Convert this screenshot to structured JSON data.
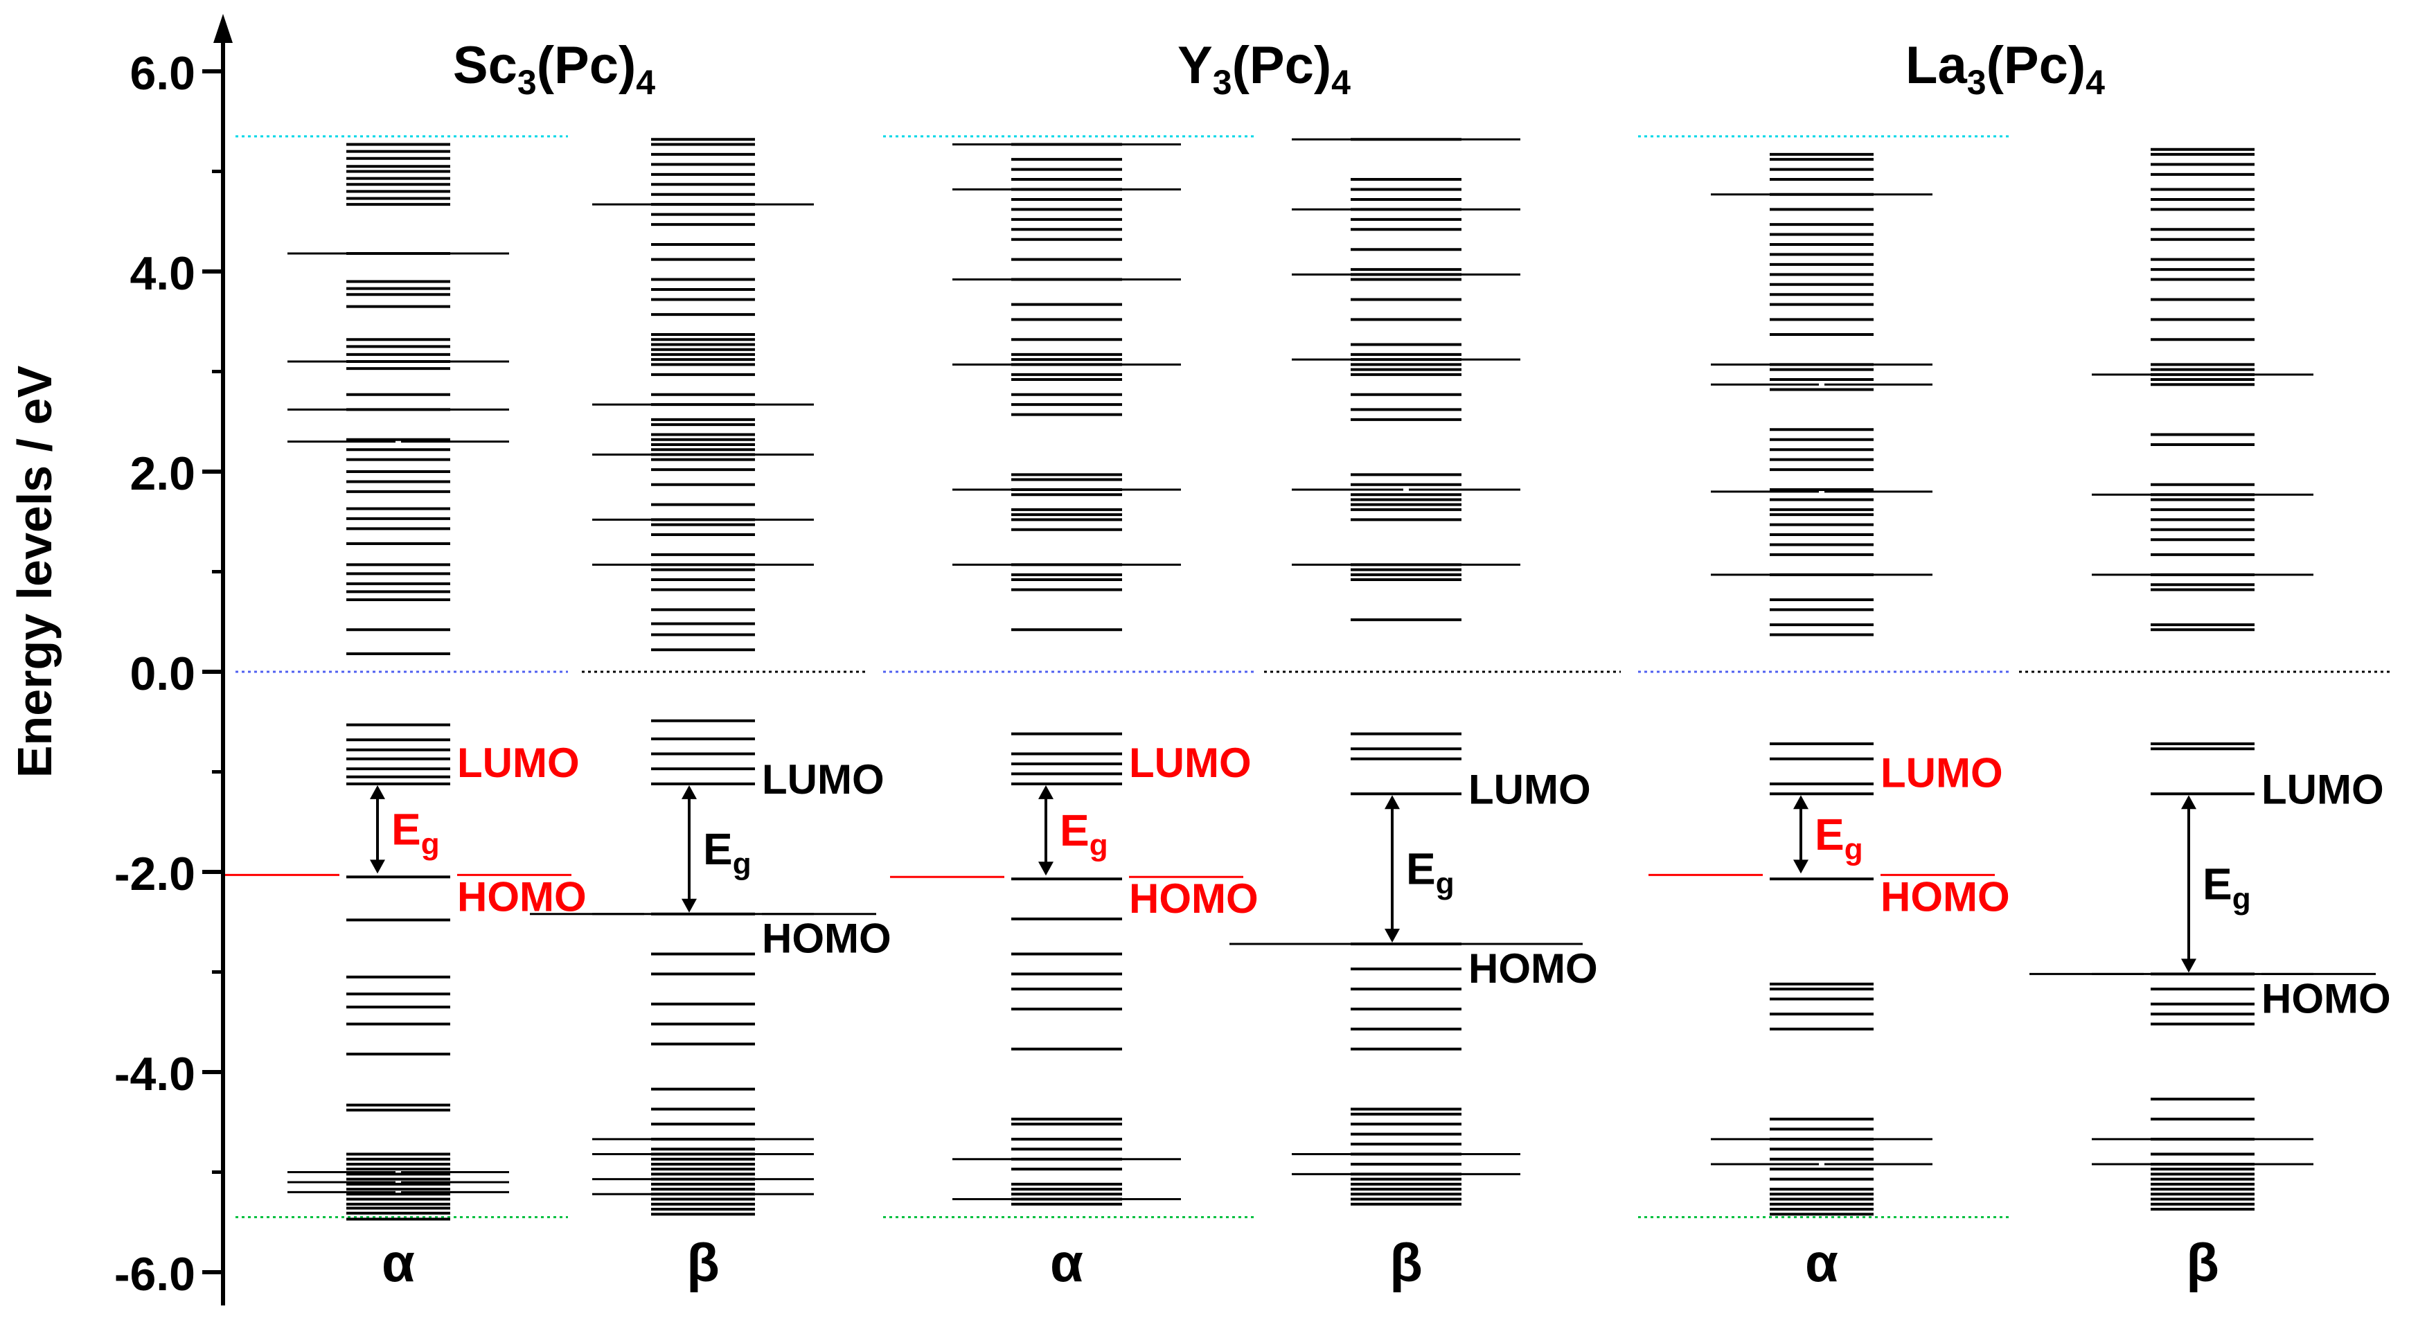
{
  "chart_data": {
    "type": "energy-level-diagram",
    "ylabel": "Energy levels / eV",
    "ylim": [
      -6.0,
      6.0
    ],
    "yticks": [
      "6.0",
      "4.0",
      "2.0",
      "0.0",
      "-2.0",
      "-4.0",
      "-6.0"
    ],
    "ytick_values": [
      6,
      4,
      2,
      0,
      -2,
      -4,
      -6
    ],
    "colors": {
      "level": "#000000",
      "alpha_annotation": "#ff0000",
      "beta_annotation": "#000000",
      "top_ref": "#00d8e8",
      "zero_ref_alpha": "#5060f0",
      "zero_ref_beta": "#000000",
      "bottom_ref": "#00c040"
    },
    "panels": [
      {
        "title_base": "Sc",
        "title_sub1": "3",
        "title_mid": "(Pc)",
        "title_sub2": "4",
        "columns": [
          {
            "spin": "α",
            "levels": [
              -5.47,
              -5.41,
              -5.36,
              -5.32,
              -5.27,
              -5.22,
              -5.17,
              -5.12,
              -5.07,
              -5.02,
              -4.97,
              -4.92,
              -4.87,
              -4.82,
              -4.38,
              -4.33,
              -3.82,
              -3.52,
              -3.35,
              -3.22,
              -3.05,
              -2.48,
              -2.05,
              -1.12,
              -1.05,
              -0.97,
              -0.87,
              -0.78,
              -0.68,
              -0.53,
              0.18,
              0.42,
              0.72,
              0.8,
              0.88,
              0.98,
              1.07,
              1.28,
              1.43,
              1.53,
              1.63,
              1.8,
              1.9,
              2.0,
              2.12,
              2.22,
              2.32,
              2.62,
              2.77,
              3.03,
              3.1,
              3.17,
              3.25,
              3.32,
              3.65,
              3.77,
              3.83,
              3.9,
              4.18,
              4.67,
              4.73,
              4.8,
              4.87,
              4.93,
              5.0,
              5.05,
              5.13,
              5.2,
              5.27
            ],
            "wide_levels": [
              {
                "e": -5.2,
                "side": "left"
              },
              {
                "e": -5.2,
                "side": "right"
              },
              {
                "e": -5.1,
                "side": "both"
              },
              {
                "e": -5.0,
                "side": "both"
              },
              {
                "e": 2.3,
                "side": "both"
              },
              {
                "e": 2.62,
                "side": "both"
              },
              {
                "e": 3.1,
                "side": "both"
              },
              {
                "e": 4.18,
                "side": "both"
              }
            ],
            "homo": -2.03,
            "lumo": -1.12,
            "homo_label": "HOMO",
            "lumo_label": "LUMO",
            "gap_label": "E",
            "gap_sub": "g"
          },
          {
            "spin": "β",
            "levels": [
              -5.42,
              -5.37,
              -5.32,
              -5.27,
              -5.22,
              -5.17,
              -5.12,
              -5.07,
              -5.02,
              -4.97,
              -4.92,
              -4.87,
              -4.82,
              -4.77,
              -4.67,
              -4.52,
              -4.37,
              -4.17,
              -3.72,
              -3.52,
              -3.32,
              -3.02,
              -2.82,
              -2.42,
              -1.12,
              -0.97,
              -0.82,
              -0.67,
              -0.49,
              0.22,
              0.37,
              0.48,
              0.62,
              0.82,
              0.92,
              1.02,
              1.07,
              1.17,
              1.37,
              1.47,
              1.52,
              1.67,
              1.87,
              2.02,
              2.12,
              2.17,
              2.22,
              2.27,
              2.32,
              2.37,
              2.47,
              2.52,
              2.67,
              2.77,
              2.97,
              3.07,
              3.12,
              3.17,
              3.22,
              3.27,
              3.32,
              3.37,
              3.57,
              3.72,
              3.82,
              3.92,
              4.12,
              4.27,
              4.47,
              4.57,
              4.67,
              4.77,
              4.87,
              4.97,
              5.07,
              5.17,
              5.27,
              5.32
            ],
            "wide_levels": [
              {
                "e": -4.67,
                "side": "both"
              },
              {
                "e": -4.82,
                "side": "both"
              },
              {
                "e": -5.07,
                "side": "both"
              },
              {
                "e": -5.22,
                "side": "both"
              },
              {
                "e": -2.42,
                "side": "both"
              },
              {
                "e": 1.07,
                "side": "both"
              },
              {
                "e": 1.52,
                "side": "both"
              },
              {
                "e": 2.17,
                "side": "both"
              },
              {
                "e": 2.67,
                "side": "both"
              },
              {
                "e": 4.67,
                "side": "both"
              }
            ],
            "homo": -2.42,
            "lumo": -1.12,
            "homo_label": "HOMO",
            "lumo_label": "LUMO",
            "gap_label": "E",
            "gap_sub": "g"
          }
        ]
      },
      {
        "title_base": "Y",
        "title_sub1": "3",
        "title_mid": "(Pc)",
        "title_sub2": "4",
        "columns": [
          {
            "spin": "α",
            "levels": [
              -5.32,
              -5.27,
              -5.22,
              -5.17,
              -5.12,
              -4.97,
              -4.87,
              -4.77,
              -4.67,
              -4.52,
              -4.47,
              -3.77,
              -3.37,
              -3.17,
              -3.02,
              -2.82,
              -2.47,
              -2.07,
              -1.12,
              -1.02,
              -0.92,
              -0.82,
              -0.62,
              0.42,
              0.82,
              0.92,
              0.97,
              1.07,
              1.42,
              1.52,
              1.57,
              1.62,
              1.77,
              1.82,
              1.92,
              1.97,
              2.57,
              2.67,
              2.77,
              2.92,
              2.97,
              3.07,
              3.12,
              3.17,
              3.32,
              3.52,
              3.67,
              3.92,
              4.12,
              4.32,
              4.42,
              4.52,
              4.62,
              4.72,
              4.82,
              4.92,
              5.02,
              5.12,
              5.27
            ],
            "wide_levels": [
              {
                "e": -4.87,
                "side": "both"
              },
              {
                "e": -5.27,
                "side": "both"
              },
              {
                "e": 1.07,
                "side": "both"
              },
              {
                "e": 1.82,
                "side": "both"
              },
              {
                "e": 3.07,
                "side": "both"
              },
              {
                "e": 3.92,
                "side": "both"
              },
              {
                "e": 4.82,
                "side": "both"
              },
              {
                "e": 5.27,
                "side": "both"
              }
            ],
            "homo": -2.05,
            "lumo": -1.12,
            "homo_label": "HOMO",
            "lumo_label": "LUMO",
            "gap_label": "E",
            "gap_sub": "g"
          },
          {
            "spin": "β",
            "levels": [
              -5.32,
              -5.27,
              -5.22,
              -5.17,
              -5.12,
              -5.07,
              -5.02,
              -4.92,
              -4.82,
              -4.72,
              -4.62,
              -4.52,
              -4.42,
              -4.37,
              -3.77,
              -3.57,
              -3.37,
              -3.17,
              -2.97,
              -2.72,
              -1.22,
              -0.87,
              -0.77,
              -0.62,
              0.52,
              0.92,
              0.97,
              1.02,
              1.07,
              1.52,
              1.62,
              1.67,
              1.72,
              1.77,
              1.87,
              1.97,
              2.52,
              2.62,
              2.77,
              2.97,
              3.02,
              3.07,
              3.12,
              3.17,
              3.27,
              3.52,
              3.72,
              3.92,
              3.97,
              4.02,
              4.22,
              4.42,
              4.52,
              4.62,
              4.72,
              4.82,
              4.92,
              5.32
            ],
            "wide_levels": [
              {
                "e": -2.72,
                "side": "both"
              },
              {
                "e": -5.02,
                "side": "both"
              },
              {
                "e": -4.82,
                "side": "both"
              },
              {
                "e": 1.07,
                "side": "both"
              },
              {
                "e": 1.82,
                "side": "both"
              },
              {
                "e": 3.12,
                "side": "both"
              },
              {
                "e": 3.97,
                "side": "both"
              },
              {
                "e": 4.62,
                "side": "both"
              },
              {
                "e": 5.32,
                "side": "both"
              }
            ],
            "homo": -2.72,
            "lumo": -1.22,
            "homo_label": "HOMO",
            "lumo_label": "LUMO",
            "gap_label": "E",
            "gap_sub": "g"
          }
        ]
      },
      {
        "title_base": "La",
        "title_sub1": "3",
        "title_mid": "(Pc)",
        "title_sub2": "4",
        "columns": [
          {
            "spin": "α",
            "levels": [
              -5.42,
              -5.37,
              -5.32,
              -5.27,
              -5.22,
              -5.17,
              -5.07,
              -4.97,
              -4.87,
              -4.77,
              -4.67,
              -4.57,
              -4.47,
              -3.57,
              -3.42,
              -3.27,
              -3.17,
              -3.12,
              -2.07,
              -1.22,
              -1.12,
              -0.87,
              -0.72,
              0.37,
              0.47,
              0.62,
              0.72,
              0.97,
              1.17,
              1.27,
              1.37,
              1.47,
              1.57,
              1.62,
              1.72,
              1.82,
              2.02,
              2.12,
              2.22,
              2.32,
              2.42,
              2.82,
              2.92,
              3.02,
              3.07,
              3.37,
              3.52,
              3.67,
              3.77,
              3.87,
              3.97,
              4.07,
              4.17,
              4.27,
              4.37,
              4.47,
              4.62,
              4.77,
              4.92,
              5.02,
              5.12,
              5.17
            ],
            "wide_levels": [
              {
                "e": -4.92,
                "side": "both"
              },
              {
                "e": -4.67,
                "side": "both"
              },
              {
                "e": 0.97,
                "side": "both"
              },
              {
                "e": 1.8,
                "side": "both"
              },
              {
                "e": 2.87,
                "side": "both"
              },
              {
                "e": 3.07,
                "side": "both"
              },
              {
                "e": 4.77,
                "side": "both"
              }
            ],
            "homo": -2.03,
            "lumo": -1.22,
            "homo_label": "HOMO",
            "lumo_label": "LUMO",
            "gap_label": "E",
            "gap_sub": "g"
          },
          {
            "spin": "β",
            "levels": [
              -5.37,
              -5.32,
              -5.27,
              -5.22,
              -5.17,
              -5.12,
              -5.07,
              -5.02,
              -4.97,
              -4.92,
              -4.82,
              -4.67,
              -4.47,
              -4.27,
              -3.52,
              -3.42,
              -3.32,
              -3.17,
              -3.02,
              -1.22,
              -0.77,
              -0.72,
              0.42,
              0.47,
              0.82,
              0.87,
              0.97,
              1.17,
              1.32,
              1.42,
              1.52,
              1.62,
              1.72,
              1.77,
              1.87,
              2.27,
              2.37,
              2.87,
              2.92,
              2.97,
              3.02,
              3.07,
              3.32,
              3.52,
              3.72,
              3.92,
              4.02,
              4.12,
              4.32,
              4.42,
              4.62,
              4.72,
              4.82,
              4.97,
              5.07,
              5.17,
              5.22
            ],
            "wide_levels": [
              {
                "e": -3.02,
                "side": "both"
              },
              {
                "e": -4.92,
                "side": "both"
              },
              {
                "e": -4.67,
                "side": "both"
              },
              {
                "e": 0.97,
                "side": "both"
              },
              {
                "e": 1.77,
                "side": "both"
              },
              {
                "e": 2.97,
                "side": "both"
              }
            ],
            "homo": -3.02,
            "lumo": -1.22,
            "homo_label": "HOMO",
            "lumo_label": "LUMO",
            "gap_label": "E",
            "gap_sub": "g"
          }
        ]
      }
    ],
    "reference_levels": {
      "top": 5.35,
      "zero": 0.0,
      "bottom": -5.45
    }
  }
}
